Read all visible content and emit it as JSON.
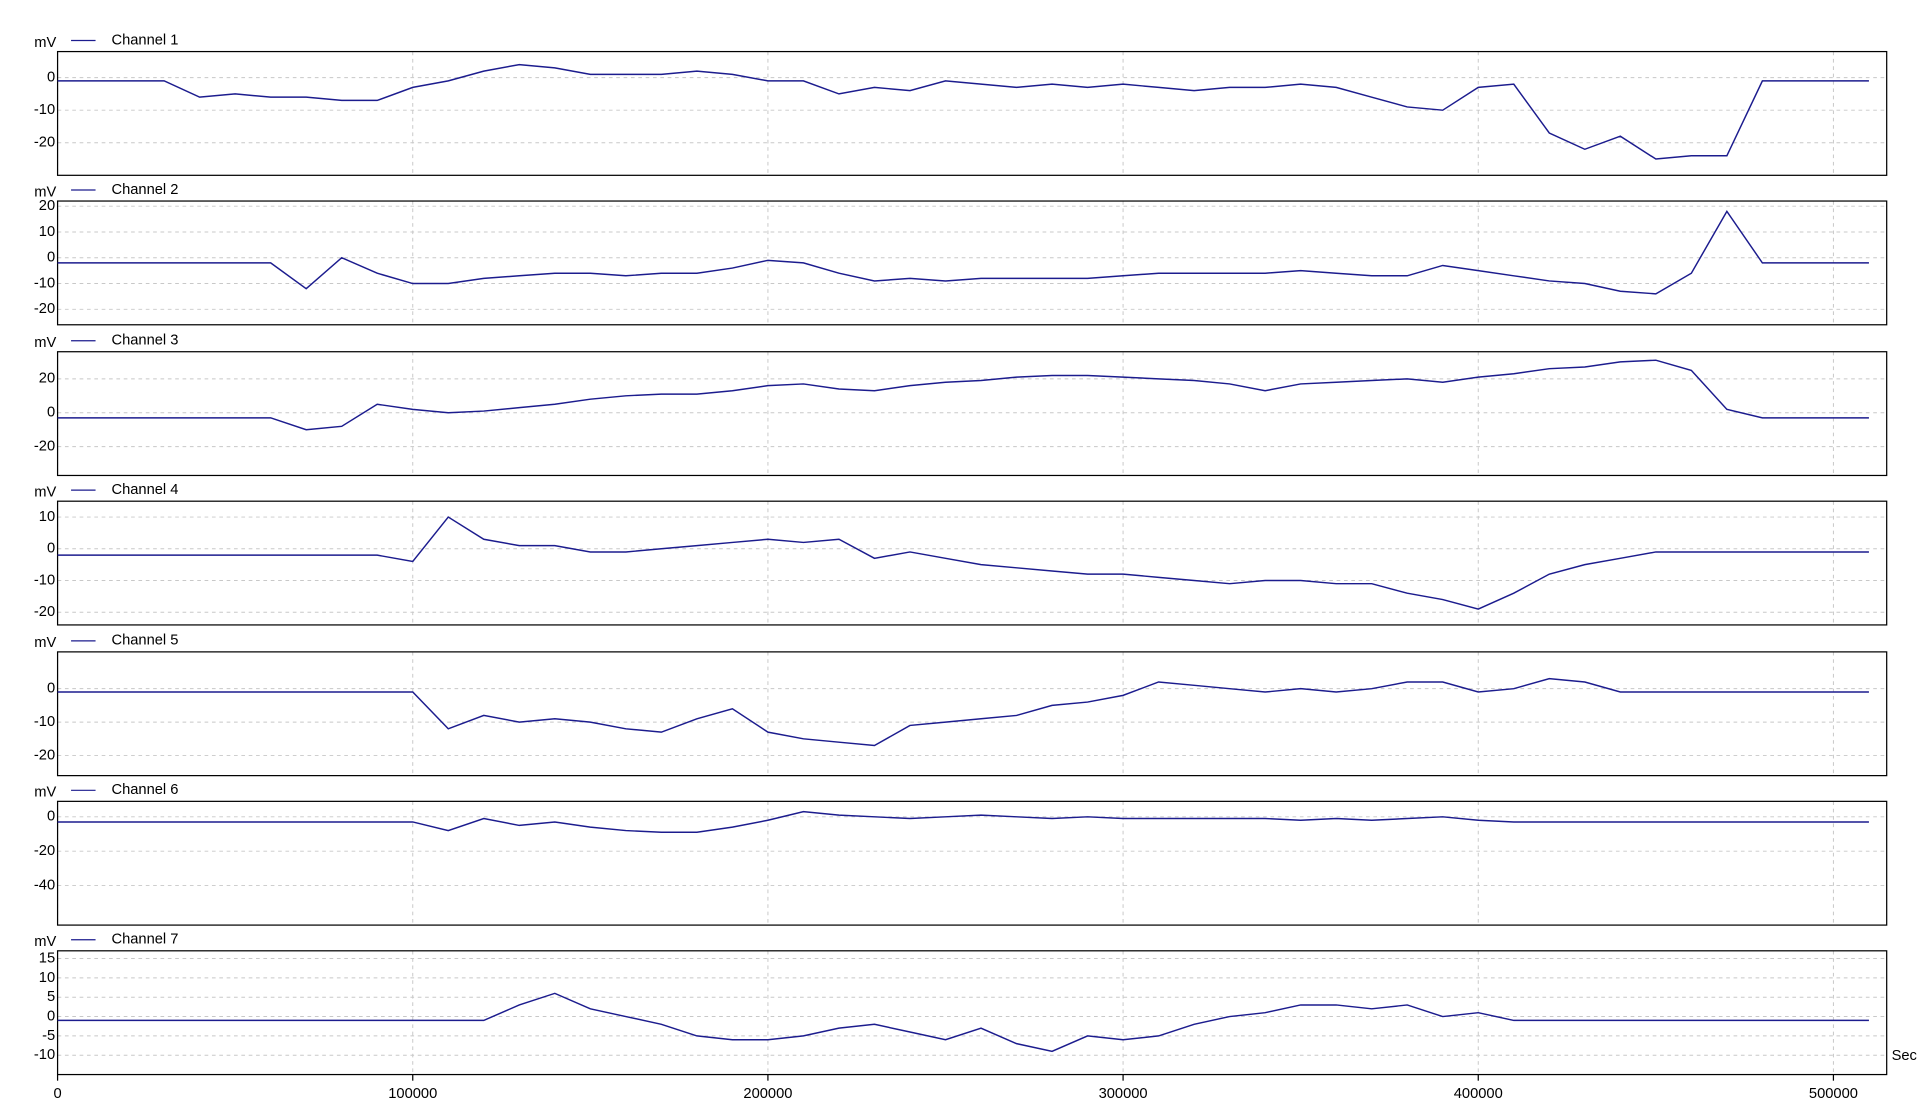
{
  "chart_data": [
    {
      "type": "line",
      "ylabel": "mV",
      "xlim": [
        0,
        515000
      ],
      "ylim": [
        -30,
        8
      ],
      "yticks": [
        0,
        -10,
        -20
      ],
      "x": [
        0,
        10000,
        20000,
        30000,
        40000,
        50000,
        60000,
        70000,
        80000,
        90000,
        100000,
        110000,
        120000,
        130000,
        140000,
        150000,
        160000,
        170000,
        180000,
        190000,
        200000,
        210000,
        220000,
        230000,
        240000,
        250000,
        260000,
        270000,
        280000,
        290000,
        300000,
        310000,
        320000,
        330000,
        340000,
        350000,
        360000,
        370000,
        380000,
        390000,
        400000,
        410000,
        420000,
        430000,
        440000,
        450000,
        460000,
        470000,
        480000,
        490000,
        500000,
        510000
      ],
      "series": [
        {
          "name": "Channel 1",
          "color": "#1c1c8e",
          "values": [
            -1,
            -1,
            -1,
            -1,
            -6,
            -5,
            -6,
            -6,
            -7,
            -7,
            -3,
            -1,
            2,
            4,
            3,
            1,
            1,
            1,
            2,
            1,
            -1,
            -1,
            -5,
            -3,
            -4,
            -1,
            -2,
            -3,
            -2,
            -3,
            -2,
            -3,
            -4,
            -3,
            -3,
            -2,
            -3,
            -6,
            -9,
            -10,
            -3,
            -2,
            -17,
            -22,
            -18,
            -25,
            -24,
            -24,
            -1,
            -1,
            -1,
            -1
          ]
        }
      ]
    },
    {
      "type": "line",
      "ylabel": "mV",
      "xlim": [
        0,
        515000
      ],
      "ylim": [
        -26,
        22
      ],
      "yticks": [
        20,
        10,
        0,
        -10,
        -20
      ],
      "x": [
        0,
        10000,
        20000,
        30000,
        40000,
        50000,
        60000,
        70000,
        80000,
        90000,
        100000,
        110000,
        120000,
        130000,
        140000,
        150000,
        160000,
        170000,
        180000,
        190000,
        200000,
        210000,
        220000,
        230000,
        240000,
        250000,
        260000,
        270000,
        280000,
        290000,
        300000,
        310000,
        320000,
        330000,
        340000,
        350000,
        360000,
        370000,
        380000,
        390000,
        400000,
        410000,
        420000,
        430000,
        440000,
        450000,
        460000,
        470000,
        480000,
        490000,
        500000,
        510000
      ],
      "series": [
        {
          "name": "Channel 2",
          "color": "#1c1c8e",
          "values": [
            -2,
            -2,
            -2,
            -2,
            -2,
            -2,
            -2,
            -12,
            0,
            -6,
            -10,
            -10,
            -8,
            -7,
            -6,
            -6,
            -7,
            -6,
            -6,
            -4,
            -1,
            -2,
            -6,
            -9,
            -8,
            -9,
            -8,
            -8,
            -8,
            -8,
            -7,
            -6,
            -6,
            -6,
            -6,
            -5,
            -6,
            -7,
            -7,
            -3,
            -5,
            -7,
            -9,
            -10,
            -13,
            -14,
            -6,
            18,
            -2,
            -2,
            -2,
            -2
          ]
        }
      ]
    },
    {
      "type": "line",
      "ylabel": "mV",
      "xlim": [
        0,
        515000
      ],
      "ylim": [
        -37,
        36
      ],
      "yticks": [
        20,
        0,
        -20
      ],
      "x": [
        0,
        10000,
        20000,
        30000,
        40000,
        50000,
        60000,
        70000,
        80000,
        90000,
        100000,
        110000,
        120000,
        130000,
        140000,
        150000,
        160000,
        170000,
        180000,
        190000,
        200000,
        210000,
        220000,
        230000,
        240000,
        250000,
        260000,
        270000,
        280000,
        290000,
        300000,
        310000,
        320000,
        330000,
        340000,
        350000,
        360000,
        370000,
        380000,
        390000,
        400000,
        410000,
        420000,
        430000,
        440000,
        450000,
        460000,
        470000,
        480000,
        490000,
        500000,
        510000
      ],
      "series": [
        {
          "name": "Channel 3",
          "color": "#1c1c8e",
          "values": [
            -3,
            -3,
            -3,
            -3,
            -3,
            -3,
            -3,
            -10,
            -8,
            5,
            2,
            0,
            1,
            3,
            5,
            8,
            10,
            11,
            11,
            13,
            16,
            17,
            14,
            13,
            16,
            18,
            19,
            21,
            22,
            22,
            21,
            20,
            19,
            17,
            13,
            17,
            18,
            19,
            20,
            18,
            21,
            23,
            26,
            27,
            30,
            31,
            25,
            2,
            -3,
            -3,
            -3,
            -3
          ]
        }
      ]
    },
    {
      "type": "line",
      "ylabel": "mV",
      "xlim": [
        0,
        515000
      ],
      "ylim": [
        -24,
        15
      ],
      "yticks": [
        10,
        0,
        -10,
        -20
      ],
      "x": [
        0,
        10000,
        20000,
        30000,
        40000,
        50000,
        60000,
        70000,
        80000,
        90000,
        100000,
        110000,
        120000,
        130000,
        140000,
        150000,
        160000,
        170000,
        180000,
        190000,
        200000,
        210000,
        220000,
        230000,
        240000,
        250000,
        260000,
        270000,
        280000,
        290000,
        300000,
        310000,
        320000,
        330000,
        340000,
        350000,
        360000,
        370000,
        380000,
        390000,
        400000,
        410000,
        420000,
        430000,
        440000,
        450000,
        460000,
        470000,
        480000,
        490000,
        500000,
        510000
      ],
      "series": [
        {
          "name": "Channel 4",
          "color": "#1c1c8e",
          "values": [
            -2,
            -2,
            -2,
            -2,
            -2,
            -2,
            -2,
            -2,
            -2,
            -2,
            -4,
            10,
            3,
            1,
            1,
            -1,
            -1,
            0,
            1,
            2,
            3,
            2,
            3,
            -3,
            -1,
            -3,
            -5,
            -6,
            -7,
            -8,
            -8,
            -9,
            -10,
            -11,
            -10,
            -10,
            -11,
            -11,
            -14,
            -16,
            -19,
            -14,
            -8,
            -5,
            -3,
            -1,
            -1,
            -1,
            -1,
            -1,
            -1,
            -1
          ]
        }
      ]
    },
    {
      "type": "line",
      "ylabel": "mV",
      "xlim": [
        0,
        515000
      ],
      "ylim": [
        -26,
        11
      ],
      "yticks": [
        0,
        -10,
        -20
      ],
      "x": [
        0,
        10000,
        20000,
        30000,
        40000,
        50000,
        60000,
        70000,
        80000,
        90000,
        100000,
        110000,
        120000,
        130000,
        140000,
        150000,
        160000,
        170000,
        180000,
        190000,
        200000,
        210000,
        220000,
        230000,
        240000,
        250000,
        260000,
        270000,
        280000,
        290000,
        300000,
        310000,
        320000,
        330000,
        340000,
        350000,
        360000,
        370000,
        380000,
        390000,
        400000,
        410000,
        420000,
        430000,
        440000,
        450000,
        460000,
        470000,
        480000,
        490000,
        500000,
        510000
      ],
      "series": [
        {
          "name": "Channel 5",
          "color": "#1c1c8e",
          "values": [
            -1,
            -1,
            -1,
            -1,
            -1,
            -1,
            -1,
            -1,
            -1,
            -1,
            -1,
            -12,
            -8,
            -10,
            -9,
            -10,
            -12,
            -13,
            -9,
            -6,
            -13,
            -15,
            -16,
            -17,
            -11,
            -10,
            -9,
            -8,
            -5,
            -4,
            -2,
            2,
            1,
            0,
            -1,
            0,
            -1,
            0,
            2,
            2,
            -1,
            0,
            3,
            2,
            -1,
            -1,
            -1,
            -1,
            -1,
            -1,
            -1,
            -1
          ]
        }
      ]
    },
    {
      "type": "line",
      "ylabel": "mV",
      "xlim": [
        0,
        515000
      ],
      "ylim": [
        -63,
        9
      ],
      "yticks": [
        0,
        -20,
        -40
      ],
      "x": [
        0,
        10000,
        20000,
        30000,
        40000,
        50000,
        60000,
        70000,
        80000,
        90000,
        100000,
        110000,
        120000,
        130000,
        140000,
        150000,
        160000,
        170000,
        180000,
        190000,
        200000,
        210000,
        220000,
        230000,
        240000,
        250000,
        260000,
        270000,
        280000,
        290000,
        300000,
        310000,
        320000,
        330000,
        340000,
        350000,
        360000,
        370000,
        380000,
        390000,
        400000,
        410000,
        420000,
        430000,
        440000,
        450000,
        460000,
        470000,
        480000,
        490000,
        500000,
        510000
      ],
      "series": [
        {
          "name": "Channel 6",
          "color": "#1c1c8e",
          "values": [
            -3,
            -3,
            -3,
            -3,
            -3,
            -3,
            -3,
            -3,
            -3,
            -3,
            -3,
            -8,
            -1,
            -5,
            -3,
            -6,
            -8,
            -9,
            -9,
            -6,
            -2,
            3,
            1,
            0,
            -1,
            0,
            1,
            0,
            -1,
            0,
            -1,
            -1,
            -1,
            -1,
            -1,
            -2,
            -1,
            -2,
            -1,
            0,
            -2,
            -3,
            -3,
            -3,
            -3,
            -3,
            -3,
            -3,
            -3,
            -3,
            -3,
            -3
          ]
        }
      ]
    },
    {
      "type": "line",
      "ylabel": "mV",
      "xlabel": "Sec",
      "xlim": [
        0,
        515000
      ],
      "ylim": [
        -15,
        17
      ],
      "yticks": [
        15,
        10,
        5,
        0,
        -5,
        -10
      ],
      "xticks": [
        0,
        100000,
        200000,
        300000,
        400000,
        500000
      ],
      "x": [
        0,
        10000,
        20000,
        30000,
        40000,
        50000,
        60000,
        70000,
        80000,
        90000,
        100000,
        110000,
        120000,
        130000,
        140000,
        150000,
        160000,
        170000,
        180000,
        190000,
        200000,
        210000,
        220000,
        230000,
        240000,
        250000,
        260000,
        270000,
        280000,
        290000,
        300000,
        310000,
        320000,
        330000,
        340000,
        350000,
        360000,
        370000,
        380000,
        390000,
        400000,
        410000,
        420000,
        430000,
        440000,
        450000,
        460000,
        470000,
        480000,
        490000,
        500000,
        510000
      ],
      "series": [
        {
          "name": "Channel 7",
          "color": "#1c1c8e",
          "values": [
            -1,
            -1,
            -1,
            -1,
            -1,
            -1,
            -1,
            -1,
            -1,
            -1,
            -1,
            -1,
            -1,
            3,
            6,
            2,
            0,
            -2,
            -5,
            -6,
            -6,
            -5,
            -3,
            -2,
            -4,
            -6,
            -3,
            -7,
            -9,
            -5,
            -6,
            -5,
            -2,
            0,
            1,
            3,
            3,
            2,
            3,
            0,
            1,
            -1,
            -1,
            -1,
            -1,
            -1,
            -1,
            -1,
            -1,
            -1,
            -1,
            -1
          ]
        }
      ]
    }
  ]
}
